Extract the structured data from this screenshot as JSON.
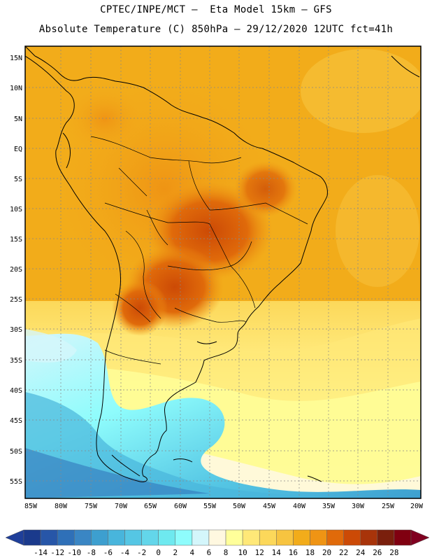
{
  "header": {
    "line1": "CPTEC/INPE/MCT –  Eta Model 15km – GFS",
    "line2": "Absolute Temperature (C) 850hPa – 29/12/2020 12UTC fct=41h"
  },
  "map": {
    "lat_labels": [
      "15N",
      "10N",
      "5N",
      "EQ",
      "5S",
      "10S",
      "15S",
      "20S",
      "25S",
      "30S",
      "35S",
      "40S",
      "45S",
      "50S",
      "55S"
    ],
    "lon_labels": [
      "85W",
      "80W",
      "75W",
      "70W",
      "65W",
      "60W",
      "55W",
      "50W",
      "45W",
      "40W",
      "35W",
      "30W",
      "25W",
      "20W"
    ],
    "grid": "dashed",
    "variable": "Absolute Temperature (C) 850hPa"
  },
  "colorbar": {
    "labels": [
      "-14",
      "-12",
      "-10",
      "-8",
      "-6",
      "-4",
      "-2",
      "0",
      "2",
      "4",
      "6",
      "8",
      "10",
      "12",
      "14",
      "16",
      "18",
      "20",
      "22",
      "24",
      "26",
      "28"
    ],
    "colors": [
      "#1a3a8c",
      "#2756a8",
      "#2f70b8",
      "#3a86c4",
      "#3d9fcf",
      "#48b5dc",
      "#55c6e4",
      "#63d6ea",
      "#6ee9ef",
      "#8efcfc",
      "#d4f6fb",
      "#fff8e0",
      "#ffff9a",
      "#ffe878",
      "#fcd85a",
      "#f7c440",
      "#f2ac1a",
      "#ef9414",
      "#e06a0a",
      "#cc4a06",
      "#a8340a",
      "#7a1f0c",
      "#800010"
    ],
    "low_arrow_color": "#1f3f9a",
    "high_arrow_color": "#800020"
  }
}
